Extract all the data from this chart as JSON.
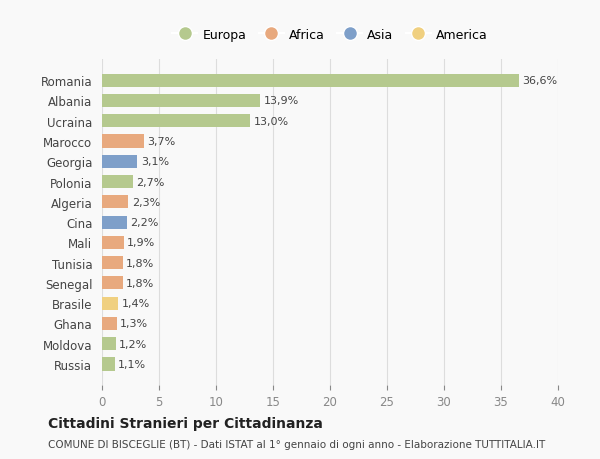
{
  "countries": [
    "Romania",
    "Albania",
    "Ucraina",
    "Marocco",
    "Georgia",
    "Polonia",
    "Algeria",
    "Cina",
    "Mali",
    "Tunisia",
    "Senegal",
    "Brasile",
    "Ghana",
    "Moldova",
    "Russia"
  ],
  "values": [
    36.6,
    13.9,
    13.0,
    3.7,
    3.1,
    2.7,
    2.3,
    2.2,
    1.9,
    1.8,
    1.8,
    1.4,
    1.3,
    1.2,
    1.1
  ],
  "labels": [
    "36,6%",
    "13,9%",
    "13,0%",
    "3,7%",
    "3,1%",
    "2,7%",
    "2,3%",
    "2,2%",
    "1,9%",
    "1,8%",
    "1,8%",
    "1,4%",
    "1,3%",
    "1,2%",
    "1,1%"
  ],
  "continents": [
    "Europa",
    "Europa",
    "Europa",
    "Africa",
    "Asia",
    "Europa",
    "Africa",
    "Asia",
    "Africa",
    "Africa",
    "Africa",
    "America",
    "Africa",
    "Europa",
    "Europa"
  ],
  "colors": {
    "Europa": "#b5c98e",
    "Africa": "#e8a97e",
    "Asia": "#7e9fc9",
    "America": "#f0d080"
  },
  "legend_order": [
    "Europa",
    "Africa",
    "Asia",
    "America"
  ],
  "title": "Cittadini Stranieri per Cittadinanza",
  "subtitle": "COMUNE DI BISCEGLIE (BT) - Dati ISTAT al 1° gennaio di ogni anno - Elaborazione TUTTITALIA.IT",
  "xlim": [
    0,
    40
  ],
  "xticks": [
    0,
    5,
    10,
    15,
    20,
    25,
    30,
    35,
    40
  ],
  "background_color": "#f9f9f9",
  "grid_color": "#dddddd"
}
